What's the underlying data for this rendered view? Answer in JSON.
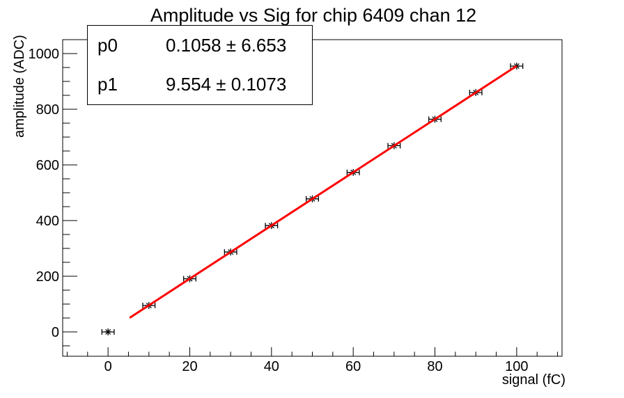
{
  "page": {
    "background": "#ffffff",
    "frame_color": "#000000"
  },
  "chart_data": {
    "type": "scatter",
    "title": "Amplitude vs Sig for chip 6409 chan 12",
    "xlabel": "signal (fC)",
    "ylabel": "amplitude (ADC)",
    "xlim": [
      -11.1,
      111.1
    ],
    "ylim": [
      -87.5,
      1050
    ],
    "x_major_ticks": [
      0,
      20,
      40,
      60,
      80,
      100
    ],
    "x_minor": {
      "start": -10,
      "end": 110,
      "step": 5,
      "major_every": 20
    },
    "y_major_ticks": [
      0,
      200,
      400,
      600,
      800,
      1000
    ],
    "y_minor": {
      "start": -50,
      "end": 1050,
      "step": 50,
      "major_every": 200
    },
    "grid": false,
    "legend": "none",
    "marker": "asterisk",
    "marker_color": "#000000",
    "xerr": 1.5,
    "points": [
      {
        "x": 0,
        "y": 0
      },
      {
        "x": 10,
        "y": 95
      },
      {
        "x": 20,
        "y": 191
      },
      {
        "x": 30,
        "y": 287
      },
      {
        "x": 40,
        "y": 382
      },
      {
        "x": 50,
        "y": 478
      },
      {
        "x": 60,
        "y": 573
      },
      {
        "x": 70,
        "y": 669
      },
      {
        "x": 80,
        "y": 764
      },
      {
        "x": 90,
        "y": 860
      },
      {
        "x": 100,
        "y": 955
      }
    ],
    "fit_line": {
      "p0": 0.1058,
      "p1": 9.554,
      "x_start": 5.3,
      "x_end": 100,
      "color": "#ff0000",
      "width": 3
    }
  },
  "stats_box": {
    "rows": [
      {
        "label": "p0",
        "value": "0.1058 ± 6.653"
      },
      {
        "label": "p1",
        "value": "9.554 ± 0.1073"
      }
    ]
  }
}
